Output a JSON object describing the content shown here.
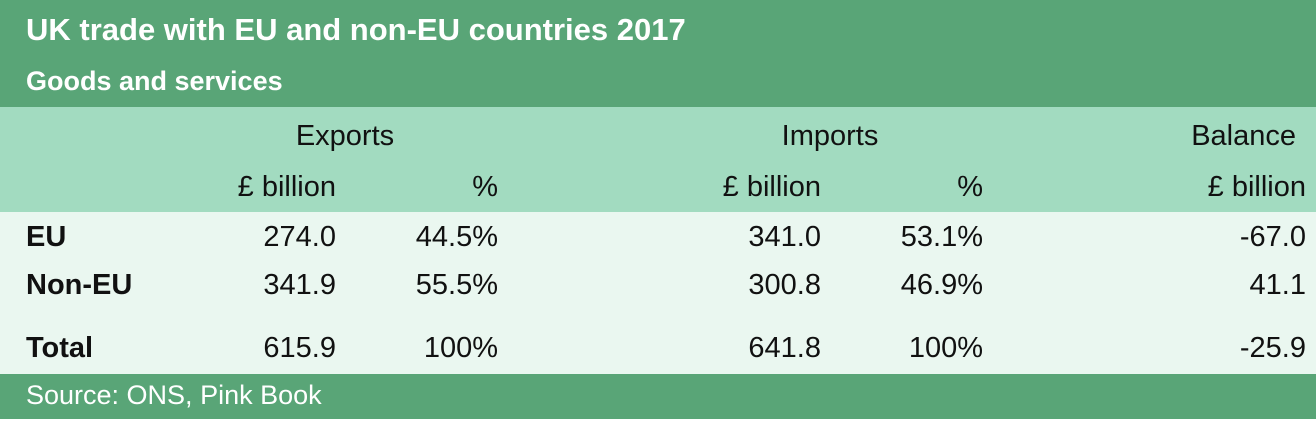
{
  "chart_data": {
    "type": "table",
    "title": "UK trade with EU and non-EU countries 2017",
    "subtitle": "Goods and services",
    "groups": [
      "Exports",
      "Imports",
      "Balance"
    ],
    "units": [
      "£ billion",
      "%",
      "£ billion",
      "%",
      "£ billion"
    ],
    "rows": [
      {
        "label": "EU",
        "values": [
          "274.0",
          "44.5%",
          "341.0",
          "53.1%",
          "-67.0"
        ]
      },
      {
        "label": "Non-EU",
        "values": [
          "341.9",
          "55.5%",
          "300.8",
          "46.9%",
          "41.1"
        ]
      },
      {
        "label": "Total",
        "values": [
          "615.9",
          "100%",
          "641.8",
          "100%",
          "-25.9"
        ]
      }
    ],
    "source": "Source: ONS, Pink Book"
  },
  "colors": {
    "title_band": "#59a577",
    "header_band": "#a2dbc0",
    "body_band": "#eaf7f0"
  }
}
